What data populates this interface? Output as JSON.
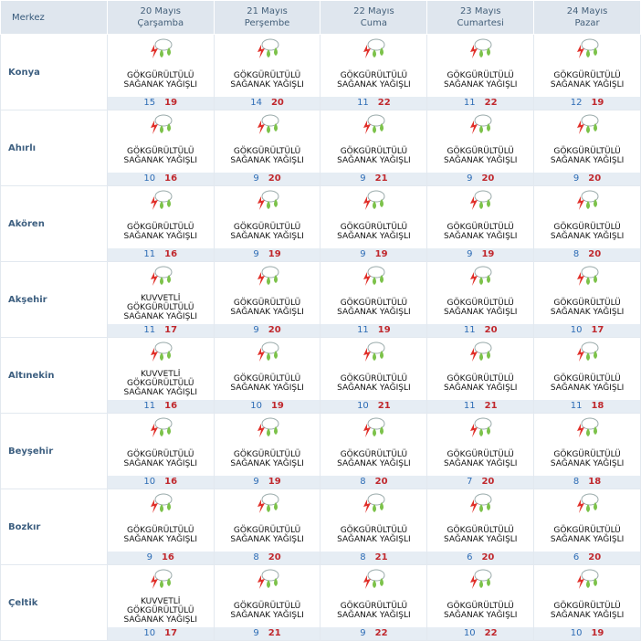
{
  "table": {
    "header": {
      "corner": "Merkez",
      "days": [
        {
          "date": "20 Mayıs",
          "day": "Çarşamba"
        },
        {
          "date": "21 Mayıs",
          "day": "Perşembe"
        },
        {
          "date": "22 Mayıs",
          "day": "Cuma"
        },
        {
          "date": "23 Mayıs",
          "day": "Cumartesi"
        },
        {
          "date": "24 Mayıs",
          "day": "Pazar"
        }
      ]
    },
    "rows": [
      {
        "city": "Konya",
        "cells": [
          {
            "condition": [
              "GÖKGÜRÜLTÜLÜ",
              "SAĞANAK YAĞIŞLI"
            ],
            "min": "15",
            "max": "19"
          },
          {
            "condition": [
              "GÖKGÜRÜLTÜLÜ",
              "SAĞANAK YAĞIŞLI"
            ],
            "min": "14",
            "max": "20"
          },
          {
            "condition": [
              "GÖKGÜRÜLTÜLÜ",
              "SAĞANAK YAĞIŞLI"
            ],
            "min": "11",
            "max": "22"
          },
          {
            "condition": [
              "GÖKGÜRÜLTÜLÜ",
              "SAĞANAK YAĞIŞLI"
            ],
            "min": "11",
            "max": "22"
          },
          {
            "condition": [
              "GÖKGÜRÜLTÜLÜ",
              "SAĞANAK YAĞIŞLI"
            ],
            "min": "12",
            "max": "19"
          }
        ]
      },
      {
        "city": "Ahırlı",
        "cells": [
          {
            "condition": [
              "GÖKGÜRÜLTÜLÜ",
              "SAĞANAK YAĞIŞLI"
            ],
            "min": "10",
            "max": "16"
          },
          {
            "condition": [
              "GÖKGÜRÜLTÜLÜ",
              "SAĞANAK YAĞIŞLI"
            ],
            "min": "9",
            "max": "20"
          },
          {
            "condition": [
              "GÖKGÜRÜLTÜLÜ",
              "SAĞANAK YAĞIŞLI"
            ],
            "min": "9",
            "max": "21"
          },
          {
            "condition": [
              "GÖKGÜRÜLTÜLÜ",
              "SAĞANAK YAĞIŞLI"
            ],
            "min": "9",
            "max": "20"
          },
          {
            "condition": [
              "GÖKGÜRÜLTÜLÜ",
              "SAĞANAK YAĞIŞLI"
            ],
            "min": "9",
            "max": "20"
          }
        ]
      },
      {
        "city": "Akören",
        "cells": [
          {
            "condition": [
              "GÖKGÜRÜLTÜLÜ",
              "SAĞANAK YAĞIŞLI"
            ],
            "min": "11",
            "max": "16"
          },
          {
            "condition": [
              "GÖKGÜRÜLTÜLÜ",
              "SAĞANAK YAĞIŞLI"
            ],
            "min": "9",
            "max": "19"
          },
          {
            "condition": [
              "GÖKGÜRÜLTÜLÜ",
              "SAĞANAK YAĞIŞLI"
            ],
            "min": "9",
            "max": "19"
          },
          {
            "condition": [
              "GÖKGÜRÜLTÜLÜ",
              "SAĞANAK YAĞIŞLI"
            ],
            "min": "9",
            "max": "19"
          },
          {
            "condition": [
              "GÖKGÜRÜLTÜLÜ",
              "SAĞANAK YAĞIŞLI"
            ],
            "min": "8",
            "max": "20"
          }
        ]
      },
      {
        "city": "Akşehir",
        "cells": [
          {
            "condition": [
              "KUVVETLİ",
              "GÖKGÜRÜLTÜLÜ",
              "SAĞANAK YAĞIŞLI"
            ],
            "min": "11",
            "max": "17"
          },
          {
            "condition": [
              "GÖKGÜRÜLTÜLÜ",
              "SAĞANAK YAĞIŞLI"
            ],
            "min": "9",
            "max": "20"
          },
          {
            "condition": [
              "GÖKGÜRÜLTÜLÜ",
              "SAĞANAK YAĞIŞLI"
            ],
            "min": "11",
            "max": "19"
          },
          {
            "condition": [
              "GÖKGÜRÜLTÜLÜ",
              "SAĞANAK YAĞIŞLI"
            ],
            "min": "11",
            "max": "20"
          },
          {
            "condition": [
              "GÖKGÜRÜLTÜLÜ",
              "SAĞANAK YAĞIŞLI"
            ],
            "min": "10",
            "max": "17"
          }
        ]
      },
      {
        "city": "Altınekin",
        "cells": [
          {
            "condition": [
              "KUVVETLİ",
              "GÖKGÜRÜLTÜLÜ",
              "SAĞANAK YAĞIŞLI"
            ],
            "min": "11",
            "max": "16"
          },
          {
            "condition": [
              "GÖKGÜRÜLTÜLÜ",
              "SAĞANAK YAĞIŞLI"
            ],
            "min": "10",
            "max": "19"
          },
          {
            "condition": [
              "GÖKGÜRÜLTÜLÜ",
              "SAĞANAK YAĞIŞLI"
            ],
            "min": "10",
            "max": "21"
          },
          {
            "condition": [
              "GÖKGÜRÜLTÜLÜ",
              "SAĞANAK YAĞIŞLI"
            ],
            "min": "11",
            "max": "21"
          },
          {
            "condition": [
              "GÖKGÜRÜLTÜLÜ",
              "SAĞANAK YAĞIŞLI"
            ],
            "min": "11",
            "max": "18"
          }
        ]
      },
      {
        "city": "Beyşehir",
        "cells": [
          {
            "condition": [
              "GÖKGÜRÜLTÜLÜ",
              "SAĞANAK YAĞIŞLI"
            ],
            "min": "10",
            "max": "16"
          },
          {
            "condition": [
              "GÖKGÜRÜLTÜLÜ",
              "SAĞANAK YAĞIŞLI"
            ],
            "min": "9",
            "max": "19"
          },
          {
            "condition": [
              "GÖKGÜRÜLTÜLÜ",
              "SAĞANAK YAĞIŞLI"
            ],
            "min": "8",
            "max": "20"
          },
          {
            "condition": [
              "GÖKGÜRÜLTÜLÜ",
              "SAĞANAK YAĞIŞLI"
            ],
            "min": "7",
            "max": "20"
          },
          {
            "condition": [
              "GÖKGÜRÜLTÜLÜ",
              "SAĞANAK YAĞIŞLI"
            ],
            "min": "8",
            "max": "18"
          }
        ]
      },
      {
        "city": "Bozkır",
        "cells": [
          {
            "condition": [
              "GÖKGÜRÜLTÜLÜ",
              "SAĞANAK YAĞIŞLI"
            ],
            "min": "9",
            "max": "16"
          },
          {
            "condition": [
              "GÖKGÜRÜLTÜLÜ",
              "SAĞANAK YAĞIŞLI"
            ],
            "min": "8",
            "max": "20"
          },
          {
            "condition": [
              "GÖKGÜRÜLTÜLÜ",
              "SAĞANAK YAĞIŞLI"
            ],
            "min": "8",
            "max": "21"
          },
          {
            "condition": [
              "GÖKGÜRÜLTÜLÜ",
              "SAĞANAK YAĞIŞLI"
            ],
            "min": "6",
            "max": "20"
          },
          {
            "condition": [
              "GÖKGÜRÜLTÜLÜ",
              "SAĞANAK YAĞIŞLI"
            ],
            "min": "6",
            "max": "20"
          }
        ]
      },
      {
        "city": "Çeltik",
        "cells": [
          {
            "condition": [
              "KUVVETLİ",
              "GÖKGÜRÜLTÜLÜ",
              "SAĞANAK YAĞIŞLI"
            ],
            "min": "10",
            "max": "17"
          },
          {
            "condition": [
              "GÖKGÜRÜLTÜLÜ",
              "SAĞANAK YAĞIŞLI"
            ],
            "min": "9",
            "max": "21"
          },
          {
            "condition": [
              "GÖKGÜRÜLTÜLÜ",
              "SAĞANAK YAĞIŞLI"
            ],
            "min": "9",
            "max": "22"
          },
          {
            "condition": [
              "GÖKGÜRÜLTÜLÜ",
              "SAĞANAK YAĞIŞLI"
            ],
            "min": "10",
            "max": "22"
          },
          {
            "condition": [
              "GÖKGÜRÜLTÜLÜ",
              "SAĞANAK YAĞIŞLI"
            ],
            "min": "10",
            "max": "19"
          }
        ]
      }
    ]
  }
}
